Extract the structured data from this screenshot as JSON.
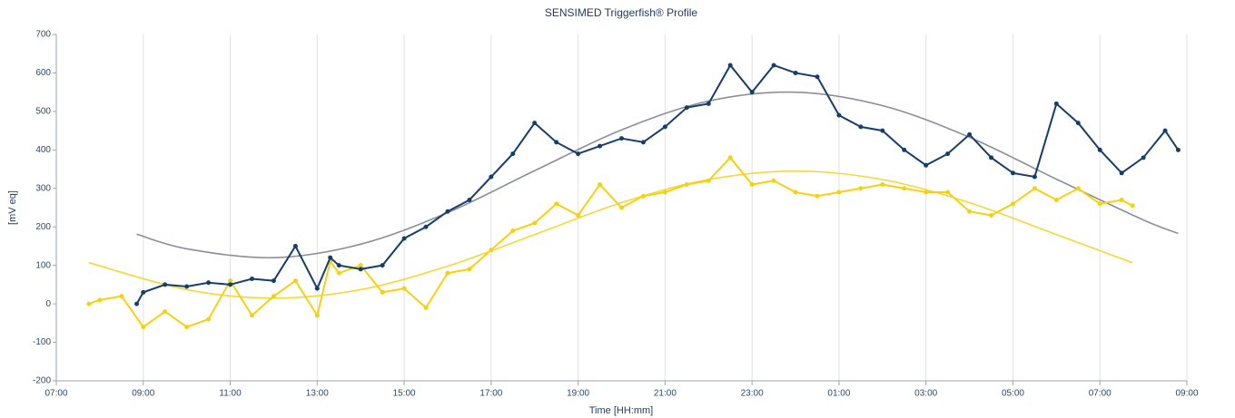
{
  "chart_data": {
    "type": "line",
    "title": "SENSIMED Triggerfish® Profile",
    "x_label": "Time [HH:mm]",
    "y_label": "[mV eq]",
    "xlim": [
      7,
      33
    ],
    "xticks": [
      {
        "value": 7,
        "label": "07:00"
      },
      {
        "value": 9,
        "label": "09:00"
      },
      {
        "value": 11,
        "label": "11:00"
      },
      {
        "value": 13,
        "label": "13:00"
      },
      {
        "value": 15,
        "label": "15:00"
      },
      {
        "value": 17,
        "label": "17:00"
      },
      {
        "value": 19,
        "label": "19:00"
      },
      {
        "value": 21,
        "label": "21:00"
      },
      {
        "value": 23,
        "label": "23:00"
      },
      {
        "value": 25,
        "label": "01:00"
      },
      {
        "value": 27,
        "label": "03:00"
      },
      {
        "value": 29,
        "label": "05:00"
      },
      {
        "value": 31,
        "label": "07:00"
      },
      {
        "value": 33,
        "label": "09:00"
      }
    ],
    "ylim": [
      -200,
      700
    ],
    "yticks": [
      -200,
      -100,
      0,
      100,
      200,
      300,
      400,
      500,
      600,
      700
    ],
    "grid": "x",
    "series": [
      {
        "color": "#8a8f99",
        "markers": false,
        "smooth": true,
        "x": [
          8.85,
          10,
          12,
          14,
          16,
          18,
          20,
          22,
          24,
          26,
          28,
          30,
          32,
          32.8
        ],
        "values": [
          181,
          143,
          120,
          155,
          237,
          346,
          452,
          527,
          550,
          515,
          433,
          324,
          218,
          183
        ]
      },
      {
        "color": "#f5d738",
        "markers": false,
        "smooth": true,
        "x": [
          7.75,
          10,
          12,
          14,
          16,
          18,
          20,
          22,
          24,
          26,
          28,
          30,
          31.75
        ],
        "values": [
          107,
          37,
          15,
          37,
          98,
          180,
          263,
          323,
          345,
          323,
          263,
          180,
          107
        ]
      },
      {
        "color": "#f5d20d",
        "markers": true,
        "smooth": false,
        "x": [
          7.75,
          8,
          8.5,
          9,
          9.5,
          10,
          10.5,
          11,
          11.5,
          12,
          12.5,
          13,
          13.3,
          13.5,
          14,
          14.5,
          15,
          15.5,
          16,
          16.5,
          17,
          17.5,
          18,
          18.5,
          19,
          19.5,
          20,
          20.5,
          21,
          21.5,
          22,
          22.5,
          23,
          23.5,
          24,
          24.5,
          25,
          25.5,
          26,
          26.5,
          27,
          27.5,
          28,
          28.5,
          29,
          29.5,
          30,
          30.5,
          31,
          31.5,
          31.75
        ],
        "values": [
          0,
          10,
          20,
          -60,
          -20,
          -60,
          -40,
          60,
          -30,
          20,
          60,
          -30,
          110,
          80,
          100,
          30,
          40,
          -10,
          80,
          90,
          140,
          190,
          210,
          260,
          230,
          310,
          250,
          280,
          290,
          310,
          320,
          380,
          310,
          320,
          290,
          280,
          290,
          300,
          310,
          300,
          290,
          290,
          240,
          230,
          260,
          300,
          270,
          300,
          260,
          270,
          255
        ]
      },
      {
        "color": "#163e6b",
        "markers": true,
        "smooth": false,
        "x": [
          8.85,
          9,
          9.5,
          10,
          10.5,
          11,
          11.5,
          12,
          12.5,
          13,
          13.3,
          13.5,
          14,
          14.5,
          15,
          15.5,
          16,
          16.5,
          17,
          17.5,
          18,
          18.5,
          19,
          19.5,
          20,
          20.5,
          21,
          21.5,
          22,
          22.5,
          23,
          23.5,
          24,
          24.5,
          25,
          25.5,
          26,
          26.5,
          27,
          27.5,
          28,
          28.5,
          29,
          29.5,
          30,
          30.5,
          31,
          31.5,
          32,
          32.5,
          32.8
        ],
        "values": [
          0,
          30,
          50,
          45,
          55,
          50,
          65,
          60,
          150,
          40,
          120,
          100,
          90,
          100,
          170,
          200,
          240,
          270,
          330,
          390,
          470,
          420,
          390,
          410,
          430,
          420,
          460,
          510,
          520,
          620,
          550,
          620,
          600,
          590,
          490,
          460,
          450,
          400,
          360,
          390,
          440,
          380,
          340,
          330,
          520,
          470,
          400,
          340,
          380,
          450,
          400
        ]
      }
    ]
  }
}
